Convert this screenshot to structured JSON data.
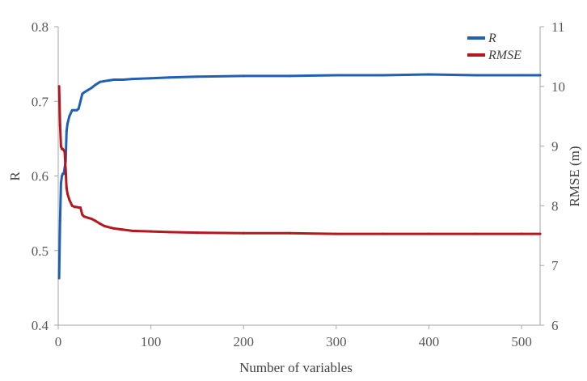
{
  "chart_data": {
    "type": "line",
    "title": "",
    "xlabel": "Number of variables",
    "ylabel_left": "R",
    "ylabel_right": "RMSE (m)",
    "xlim": [
      0,
      520
    ],
    "ylim_left": [
      0.4,
      0.8
    ],
    "ylim_right": [
      6,
      11
    ],
    "x_ticks": [
      "0",
      "100",
      "200",
      "300",
      "400",
      "500"
    ],
    "y_left_ticks": [
      "0.4",
      "0.5",
      "0.6",
      "0.7",
      "0.8"
    ],
    "y_right_ticks": [
      "6",
      "7",
      "8",
      "9",
      "10",
      "11"
    ],
    "grid": false,
    "legend_position": "top-right",
    "series": [
      {
        "name": "R",
        "axis": "left",
        "color": "#1f5fb4",
        "x": [
          1,
          2,
          3,
          4,
          5,
          6,
          8,
          9,
          10,
          12,
          15,
          18,
          20,
          22,
          24,
          26,
          28,
          32,
          36,
          40,
          45,
          50,
          55,
          60,
          70,
          80,
          100,
          120,
          150,
          200,
          250,
          300,
          350,
          400,
          450,
          500,
          520
        ],
        "values": [
          0.463,
          0.54,
          0.59,
          0.6,
          0.603,
          0.603,
          0.62,
          0.66,
          0.67,
          0.68,
          0.688,
          0.688,
          0.688,
          0.69,
          0.7,
          0.71,
          0.712,
          0.715,
          0.718,
          0.722,
          0.726,
          0.727,
          0.728,
          0.729,
          0.729,
          0.73,
          0.731,
          0.732,
          0.733,
          0.734,
          0.734,
          0.735,
          0.735,
          0.736,
          0.735,
          0.735,
          0.735
        ]
      },
      {
        "name": "RMSE",
        "axis": "right",
        "color": "#b5171f",
        "x": [
          1,
          2,
          3,
          4,
          5,
          6,
          7,
          8,
          9,
          10,
          12,
          15,
          18,
          20,
          22,
          24,
          26,
          28,
          32,
          36,
          40,
          45,
          50,
          60,
          70,
          80,
          100,
          120,
          150,
          200,
          250,
          300,
          350,
          400,
          450,
          500,
          520
        ],
        "values": [
          10.0,
          9.35,
          9.0,
          8.95,
          8.95,
          8.93,
          8.9,
          8.6,
          8.3,
          8.2,
          8.1,
          8.0,
          7.98,
          7.98,
          7.97,
          7.97,
          7.85,
          7.82,
          7.8,
          7.78,
          7.75,
          7.7,
          7.66,
          7.62,
          7.6,
          7.58,
          7.57,
          7.56,
          7.55,
          7.54,
          7.54,
          7.53,
          7.53,
          7.53,
          7.53,
          7.53,
          7.53
        ]
      }
    ]
  }
}
